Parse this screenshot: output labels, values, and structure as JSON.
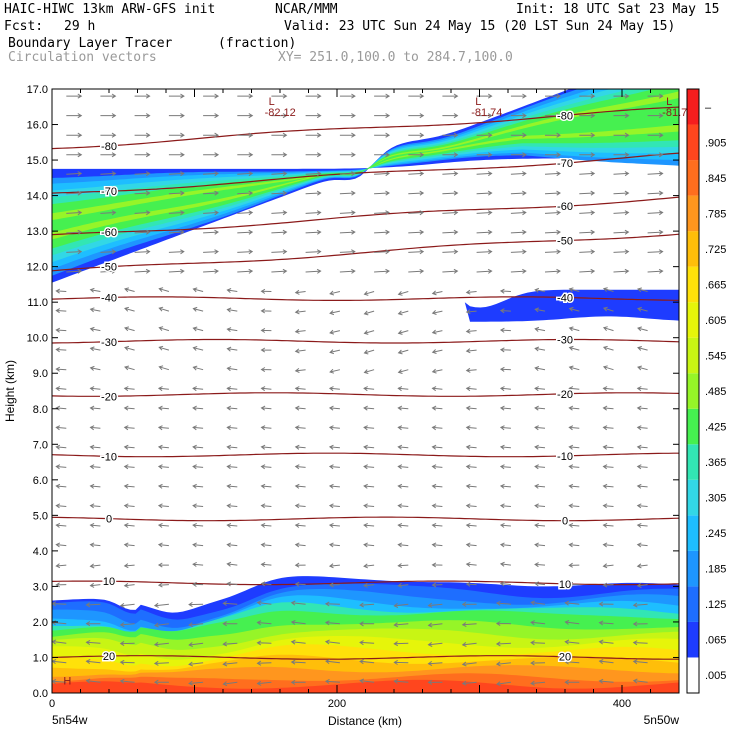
{
  "header": {
    "model": "HAIC-HIWC 13km ARW-GFS init",
    "org": "NCAR/MMM",
    "init": "Init: 18 UTC Sat 23 May 15",
    "fcst_label": "Fcst:",
    "fcst_value": "29 h",
    "valid": "Valid: 23 UTC Sun 24 May 15 (20 LST Sun 24 May 15)",
    "field_name": "Boundary Layer Tracer",
    "field_units": "(fraction)",
    "vector_name": "Circulation vectors",
    "cross_section": "XY= 251.0,100.0 to 284.7,100.0"
  },
  "chart_data": {
    "type": "heatmap",
    "title": "Boundary Layer Tracer",
    "xlabel": "Distance (km)",
    "ylabel": "Height (km)",
    "xlim": [
      0,
      440
    ],
    "ylim": [
      0,
      17
    ],
    "x_ticks": [
      0,
      200,
      400
    ],
    "x_tick_labels": [
      "0",
      "200",
      "400"
    ],
    "y_ticks": [
      0.0,
      1.0,
      2.0,
      3.0,
      4.0,
      5.0,
      6.0,
      7.0,
      8.0,
      9.0,
      10.0,
      11.0,
      12.0,
      13.0,
      14.0,
      15.0,
      16.0,
      17.0
    ],
    "y_tick_labels": [
      "0.0",
      "1.0",
      "2.0",
      "3.0",
      "4.0",
      "5.0",
      "6.0",
      "7.0",
      "8.0",
      "9.0",
      "10.0",
      "11.0",
      "12.0",
      "13.0",
      "14.0",
      "15.0",
      "16.0",
      "17.0"
    ],
    "x_endpoint_labels": [
      "5n54w",
      "5n50w"
    ],
    "colorbar": {
      "levels": [
        ".005",
        ".065",
        ".125",
        ".185",
        ".245",
        ".305",
        ".365",
        ".425",
        ".485",
        ".545",
        ".605",
        ".665",
        ".725",
        ".785",
        ".845",
        ".905",
        "–"
      ],
      "colors": [
        "#ffffff",
        "#1e3cff",
        "#1e6eff",
        "#1e96ff",
        "#1ebeff",
        "#32d7e6",
        "#32e6b4",
        "#46f050",
        "#96f528",
        "#c8f514",
        "#e6f50a",
        "#ffe10a",
        "#ffbe0a",
        "#ff961e",
        "#ff6e1e",
        "#ff461e",
        "#f51e1e"
      ]
    },
    "temperature_contours": [
      {
        "label": "20",
        "height_km": 1.0
      },
      {
        "label": "10",
        "height_km": 3.1
      },
      {
        "label": "0",
        "height_km": 4.9
      },
      {
        "label": "-10",
        "height_km": 6.7
      },
      {
        "label": "-20",
        "height_km": 8.4
      },
      {
        "label": "-30",
        "height_km": 9.9
      },
      {
        "label": "-40",
        "height_km": 11.1
      },
      {
        "label": "-50",
        "height_km": 12.4
      },
      {
        "label": "-60",
        "height_km": 13.4
      },
      {
        "label": "-70",
        "height_km": 14.6
      },
      {
        "label": "-80",
        "height_km": 15.9
      }
    ],
    "extrema": [
      {
        "label": "L",
        "value": "-82.12",
        "x_km": 152,
        "height_km": 16.6
      },
      {
        "label": "L",
        "value": "-81.74",
        "x_km": 297,
        "height_km": 16.6
      },
      {
        "label": "L",
        "value": "-81.79",
        "x_km": 431,
        "height_km": 16.6
      },
      {
        "label": "H",
        "value": "",
        "x_km": 8,
        "height_km": 0.3
      }
    ],
    "tracer_layers": [
      {
        "name": "boundary layer",
        "base_km": 0.0,
        "top_km": 2.6
      },
      {
        "name": "upper band",
        "base_km": 11.6,
        "top_km": 14.8
      },
      {
        "name": "thin upper layer",
        "base_km": 10.5,
        "top_km": 11.3
      }
    ]
  }
}
